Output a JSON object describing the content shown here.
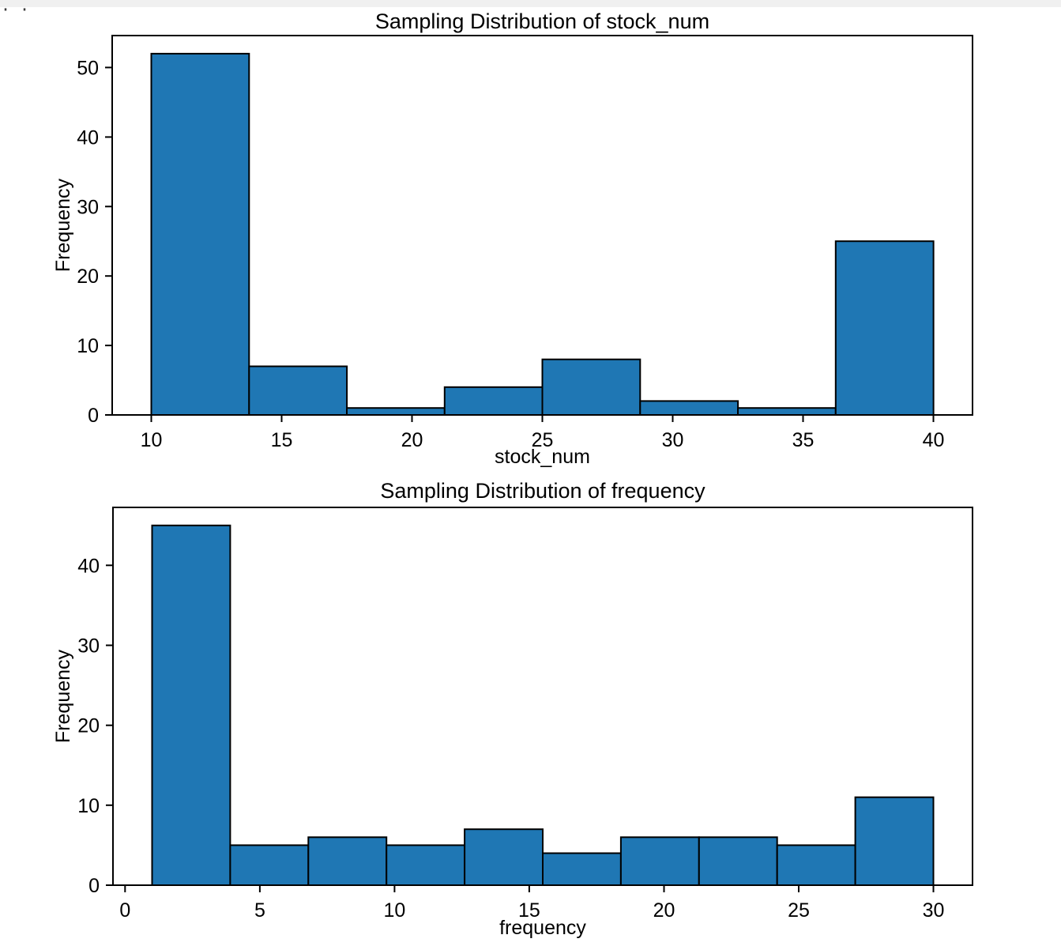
{
  "page": {
    "corner_artifact": "··"
  },
  "chart_data": [
    {
      "type": "bar",
      "subtype": "histogram",
      "title": "Sampling Distribution of stock_num",
      "xlabel": "stock_num",
      "ylabel": "Frequency",
      "bin_edges": [
        10,
        13.75,
        17.5,
        21.25,
        25,
        28.75,
        32.5,
        36.25,
        40
      ],
      "counts": [
        52,
        7,
        1,
        4,
        8,
        2,
        1,
        25
      ],
      "xticks": [
        10,
        15,
        20,
        25,
        30,
        35,
        40
      ],
      "yticks": [
        0,
        10,
        20,
        30,
        40,
        50
      ],
      "xlim": [
        8.5,
        41.5
      ],
      "ylim": [
        0,
        54.6
      ],
      "grid": false,
      "legend": null,
      "bar_color": "#1f77b4",
      "edge_color": "#000000"
    },
    {
      "type": "bar",
      "subtype": "histogram",
      "title": "Sampling Distribution of frequency",
      "xlabel": "frequency",
      "ylabel": "Frequency",
      "bin_edges": [
        1,
        3.9,
        6.8,
        9.7,
        12.6,
        15.5,
        18.4,
        21.3,
        24.2,
        27.1,
        30
      ],
      "counts": [
        45,
        5,
        6,
        5,
        7,
        4,
        6,
        6,
        5,
        11
      ],
      "xticks": [
        0,
        5,
        10,
        15,
        20,
        25,
        30
      ],
      "yticks": [
        0,
        10,
        20,
        30,
        40
      ],
      "xlim": [
        -0.45,
        31.45
      ],
      "ylim": [
        0,
        47.25
      ],
      "grid": false,
      "legend": null,
      "bar_color": "#1f77b4",
      "edge_color": "#000000"
    }
  ]
}
